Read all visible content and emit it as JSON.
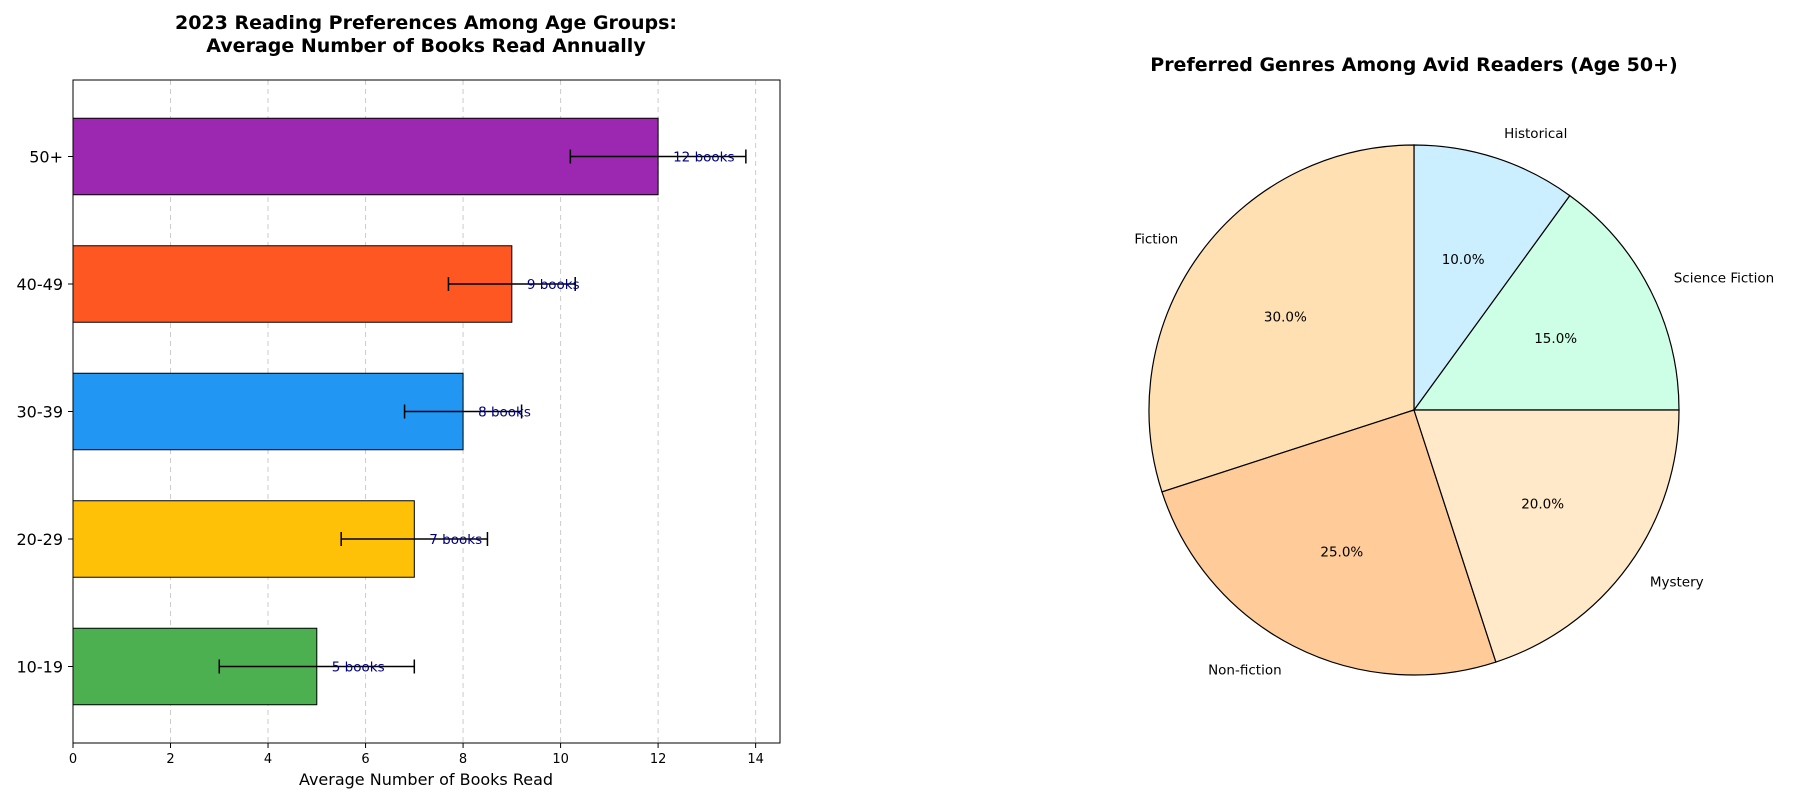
{
  "chart_data": [
    {
      "type": "bar",
      "orientation": "horizontal",
      "title_line1": "2023 Reading Preferences Among Age Groups:",
      "title_line2": "Average Number of Books Read Annually",
      "xlabel": "Average Number of Books Read",
      "ylabel": "",
      "xlim": [
        0,
        14.5
      ],
      "xticks": [
        0,
        2,
        4,
        6,
        8,
        10,
        12,
        14
      ],
      "grid": "vertical dashed",
      "categories": [
        "10-19",
        "20-29",
        "30-39",
        "40-49",
        "50+"
      ],
      "values": [
        5,
        7,
        8,
        9,
        12
      ],
      "errors": [
        2.0,
        1.5,
        1.2,
        1.3,
        1.8
      ],
      "data_labels": [
        "5 books",
        "7 books",
        "8 books",
        "9 books",
        "12 books"
      ],
      "colors": [
        "#4CAF50",
        "#FFC107",
        "#2196F3",
        "#FF5722",
        "#9C27B0"
      ]
    },
    {
      "type": "pie",
      "title": "Preferred Genres Among Avid Readers (Age 50+)",
      "labels": [
        "Science Fiction",
        "Historical",
        "Fiction",
        "Non-fiction",
        "Mystery"
      ],
      "values": [
        15,
        10,
        30,
        25,
        20
      ],
      "percent_labels": [
        "15.0%",
        "10.0%",
        "30.0%",
        "25.0%",
        "20.0%"
      ],
      "colors": [
        "#CCFFE6",
        "#CCEFFF",
        "#FFE0B2",
        "#FFCC99",
        "#FFE9C8"
      ],
      "start_angle_deg": 0,
      "direction": "counterclockwise"
    }
  ]
}
